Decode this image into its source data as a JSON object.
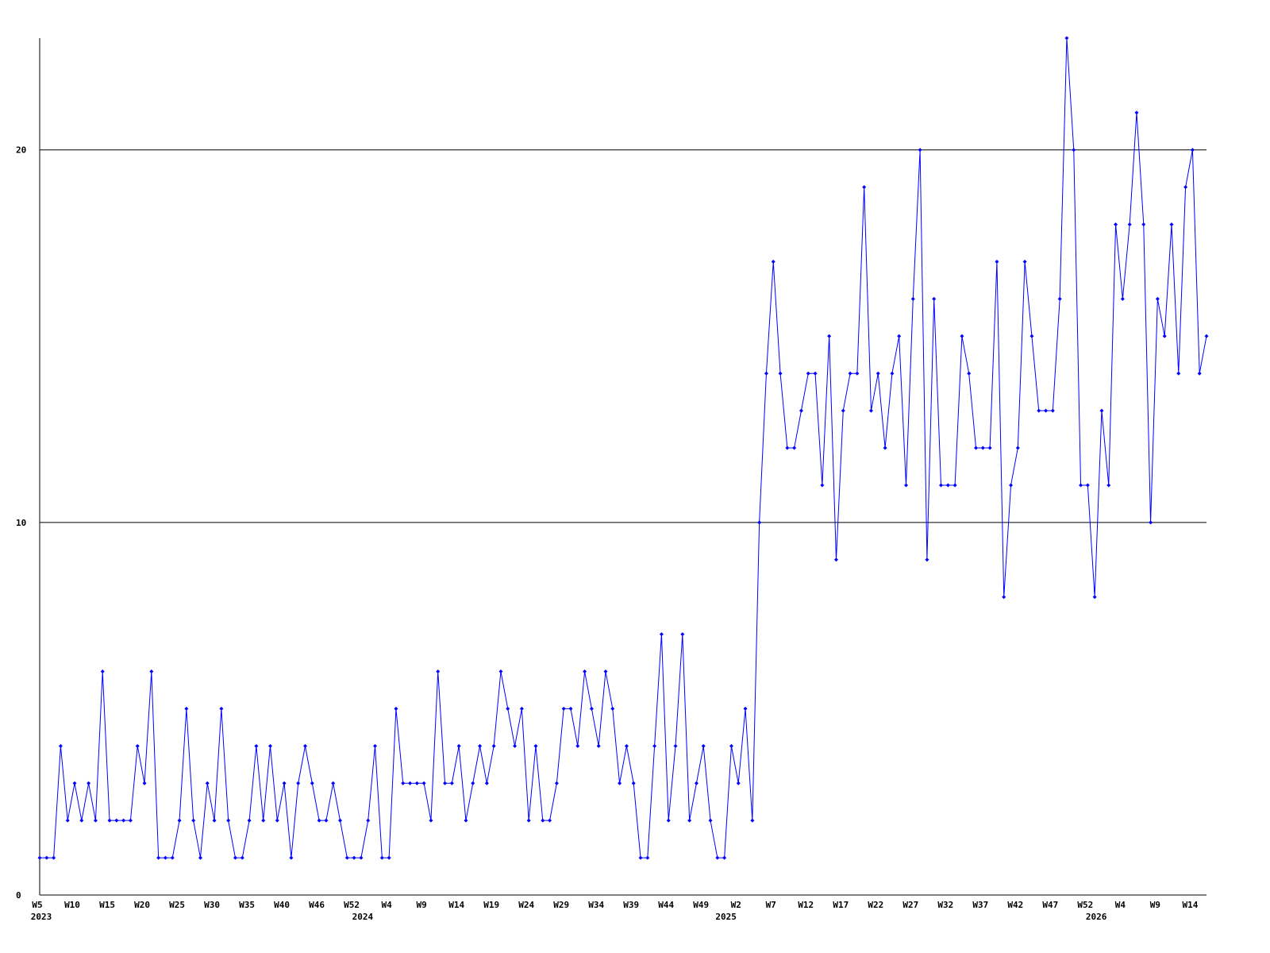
{
  "chart_data": {
    "type": "line",
    "categories": [
      "W5",
      null,
      null,
      null,
      null,
      "W10",
      null,
      null,
      null,
      null,
      "W15",
      null,
      null,
      null,
      null,
      "W20",
      null,
      null,
      null,
      null,
      "W25",
      null,
      null,
      null,
      null,
      "W30",
      null,
      null,
      null,
      null,
      "W35",
      null,
      null,
      null,
      null,
      "W40",
      null,
      null,
      null,
      null,
      "W46",
      null,
      null,
      null,
      null,
      "W52",
      null,
      null,
      null,
      null,
      "W4",
      null,
      null,
      null,
      null,
      "W9",
      null,
      null,
      null,
      null,
      "W14",
      null,
      null,
      null,
      null,
      "W19",
      null,
      null,
      null,
      null,
      "W24",
      null,
      null,
      null,
      null,
      "W29",
      null,
      null,
      null,
      null,
      "W34",
      null,
      null,
      null,
      null,
      "W39",
      null,
      null,
      null,
      null,
      "W44",
      null,
      null,
      null,
      null,
      "W49",
      null,
      null,
      null,
      null,
      "W2",
      null,
      null,
      null,
      null,
      "W7",
      null,
      null,
      null,
      null,
      "W12",
      null,
      null,
      null,
      null,
      "W17",
      null,
      null,
      null,
      null,
      "W22",
      null,
      null,
      null,
      null,
      "W27",
      null,
      null,
      null,
      null,
      "W32",
      null,
      null,
      null,
      null,
      "W37",
      null,
      null,
      null,
      null,
      "W42",
      null,
      null,
      null,
      null,
      "W47",
      null,
      null,
      null,
      null,
      "W52",
      null,
      null,
      null,
      null,
      "W4",
      null,
      null,
      null,
      null,
      "W9",
      null,
      null,
      null,
      null,
      "W14",
      null,
      null
    ],
    "category_years": [
      "2023",
      null,
      null,
      null,
      null,
      null,
      null,
      null,
      null,
      null,
      null,
      null,
      null,
      null,
      null,
      null,
      null,
      null,
      null,
      null,
      null,
      null,
      null,
      null,
      null,
      null,
      null,
      null,
      null,
      null,
      null,
      null,
      null,
      null,
      null,
      null,
      null,
      null,
      null,
      null,
      null,
      null,
      null,
      null,
      null,
      null,
      "2024",
      null,
      null,
      null,
      null,
      null,
      null,
      null,
      null,
      null,
      null,
      null,
      null,
      null,
      null,
      null,
      null,
      null,
      null,
      null,
      null,
      null,
      null,
      null,
      null,
      null,
      null,
      null,
      null,
      null,
      null,
      null,
      null,
      null,
      null,
      null,
      null,
      null,
      null,
      null,
      null,
      null,
      null,
      null,
      null,
      null,
      null,
      null,
      null,
      null,
      null,
      null,
      "2025",
      null,
      null,
      null,
      null,
      null,
      null,
      null,
      null,
      null,
      null,
      null,
      null,
      null,
      null,
      null,
      null,
      null,
      null,
      null,
      null,
      null,
      null,
      null,
      null,
      null,
      null,
      null,
      null,
      null,
      null,
      null,
      null,
      null,
      null,
      null,
      null,
      null,
      null,
      null,
      null,
      null,
      null,
      null,
      null,
      null,
      null,
      null,
      null,
      null,
      null,
      null,
      null,
      "2026",
      null,
      null,
      null,
      null,
      null,
      null,
      null,
      null,
      null,
      null,
      null,
      null,
      null,
      null,
      null,
      null
    ],
    "series": [
      {
        "color": "#0000ff",
        "values": [
          1,
          1,
          1,
          4,
          2,
          3,
          2,
          3,
          2,
          6,
          2,
          2,
          2,
          2,
          4,
          3,
          6,
          1,
          1,
          1,
          2,
          5,
          2,
          1,
          3,
          2,
          5,
          2,
          1,
          1,
          2,
          4,
          2,
          4,
          2,
          3,
          1,
          3,
          4,
          3,
          2,
          2,
          3,
          2,
          1,
          1,
          1,
          2,
          4,
          1,
          1,
          5,
          3,
          3,
          3,
          3,
          2,
          6,
          3,
          3,
          4,
          2,
          3,
          4,
          3,
          4,
          6,
          5,
          4,
          5,
          2,
          4,
          2,
          2,
          3,
          5,
          5,
          4,
          6,
          5,
          4,
          6,
          5,
          3,
          4,
          3,
          1,
          1,
          4,
          7,
          2,
          4,
          7,
          2,
          3,
          4,
          2,
          1,
          1,
          4,
          3,
          5,
          2,
          10,
          14,
          17,
          14,
          12,
          12,
          13,
          14,
          14,
          11,
          15,
          9,
          13,
          14,
          14,
          19,
          13,
          14,
          12,
          14,
          15,
          11,
          16,
          20,
          9,
          16,
          11,
          11,
          11,
          15,
          14,
          12,
          12,
          12,
          17,
          8,
          11,
          12,
          17,
          15,
          13,
          13,
          13,
          16,
          23,
          20,
          11,
          11,
          8,
          13,
          11,
          18,
          16,
          18,
          21,
          18,
          10,
          16,
          15,
          18,
          14,
          19,
          20,
          14,
          15
        ]
      }
    ],
    "ylim": [
      0,
      23
    ],
    "yticks": [
      0,
      10,
      20
    ],
    "grid": true
  }
}
